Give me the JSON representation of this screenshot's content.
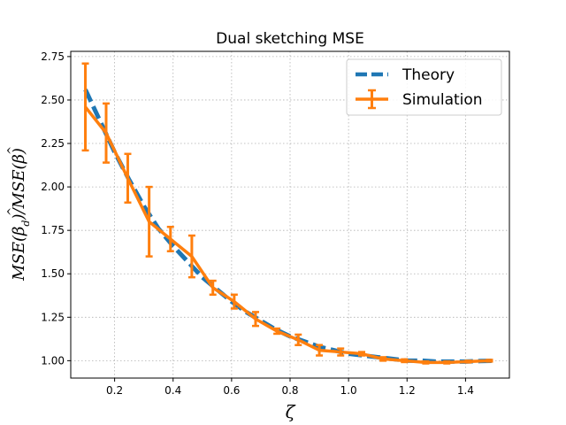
{
  "chart_data": {
    "type": "line",
    "title": "Dual sketching MSE",
    "xlabel": "ζ",
    "ylabel": "MSE(β̂_d)/MSE(β̂)",
    "ylabel_parts": {
      "a": "MSE(",
      "b": "β",
      "hat": "^",
      "sub": "d",
      "c": ")/MSE(",
      "d": "β",
      "hat2": "^",
      "e": ")"
    },
    "xlim": [
      0.05,
      1.55
    ],
    "ylim": [
      0.9,
      2.78
    ],
    "xticks": [
      0.2,
      0.4,
      0.6,
      0.8,
      1.0,
      1.2,
      1.4
    ],
    "xtick_labels": [
      "0.2",
      "0.4",
      "0.6",
      "0.8",
      "1.0",
      "1.2",
      "1.4"
    ],
    "yticks": [
      1.0,
      1.25,
      1.5,
      1.75,
      2.0,
      2.25,
      2.5,
      2.75
    ],
    "ytick_labels": [
      "1.00",
      "1.25",
      "1.50",
      "1.75",
      "2.00",
      "2.25",
      "2.50",
      "2.75"
    ],
    "grid": true,
    "legend_position": "top-right",
    "series": [
      {
        "name": "Theory",
        "color": "#1f77b4",
        "style": "dashed",
        "x": [
          0.1,
          0.15,
          0.2,
          0.25,
          0.3,
          0.35,
          0.4,
          0.45,
          0.5,
          0.55,
          0.6,
          0.65,
          0.7,
          0.75,
          0.8,
          0.85,
          0.9,
          0.95,
          1.0,
          1.05,
          1.1,
          1.15,
          1.2,
          1.25,
          1.3,
          1.35,
          1.4,
          1.45,
          1.5
        ],
        "y": [
          2.56,
          2.38,
          2.2,
          2.04,
          1.89,
          1.76,
          1.66,
          1.57,
          1.48,
          1.41,
          1.34,
          1.28,
          1.23,
          1.18,
          1.14,
          1.11,
          1.08,
          1.06,
          1.04,
          1.03,
          1.02,
          1.01,
          1.0,
          1.0,
          0.995,
          0.995,
          0.995,
          0.998,
          1.0
        ]
      },
      {
        "name": "Simulation",
        "color": "#ff7f0e",
        "style": "solid",
        "x": [
          0.1,
          0.171,
          0.245,
          0.318,
          0.391,
          0.464,
          0.536,
          0.609,
          0.682,
          0.755,
          0.828,
          0.9,
          0.973,
          1.045,
          1.118,
          1.191,
          1.264,
          1.336,
          1.409,
          1.482
        ],
        "y": [
          2.46,
          2.31,
          2.05,
          1.8,
          1.7,
          1.6,
          1.42,
          1.34,
          1.24,
          1.17,
          1.12,
          1.06,
          1.05,
          1.04,
          1.01,
          1.0,
          0.99,
          0.99,
          0.995,
          1.0
        ],
        "yerr": [
          0.25,
          0.17,
          0.14,
          0.2,
          0.07,
          0.12,
          0.04,
          0.04,
          0.04,
          0.015,
          0.03,
          0.03,
          0.02,
          0.01,
          0.01,
          0.008,
          0.006,
          0.006,
          0.005,
          0.005
        ]
      }
    ]
  }
}
